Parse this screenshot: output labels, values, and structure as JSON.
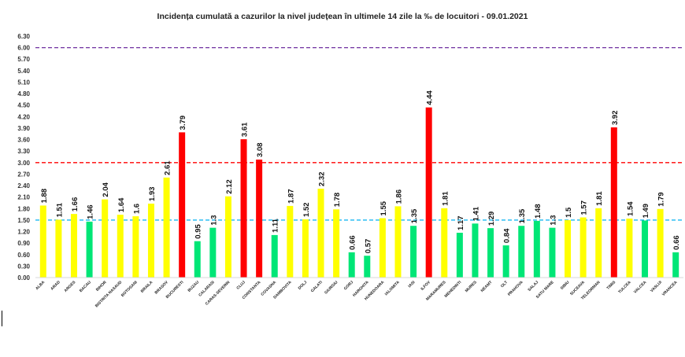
{
  "chart_data": {
    "type": "bar",
    "title": "Incidența cumulată a cazurilor la nivel județean în ultimele 14 zile la ‰ de locuitori - 09.01.2021",
    "xlabel": "",
    "ylabel": "",
    "ylim": [
      0,
      6.3
    ],
    "yticks": [
      "0.00",
      "0.30",
      "0.60",
      "0.90",
      "1.20",
      "1.50",
      "1.80",
      "2.10",
      "2.40",
      "2.70",
      "3.00",
      "3.30",
      "3.60",
      "3.90",
      "4.20",
      "4.50",
      "4.80",
      "5.10",
      "5.40",
      "5.70",
      "6.00",
      "6.30"
    ],
    "grid": false,
    "legend": "none",
    "categories": [
      "ALBA",
      "ARAD",
      "ARGES",
      "BACAU",
      "BIHOR",
      "BISTRITA NASAUD",
      "BOTOSANI",
      "BRAILA",
      "BRASOV",
      "BUCURESTI",
      "BUZAU",
      "CALARASI",
      "CARAS-SEVERIN",
      "CLUJ",
      "CONSTANTA",
      "COVASNA",
      "DAMBOVITA",
      "DOLJ",
      "GALATI",
      "GIURGIU",
      "GORJ",
      "HARGHITA",
      "HUNEDOARA",
      "IALOMITA",
      "IASI",
      "ILFOV",
      "MARAMURES",
      "MEHEDINTI",
      "MURES",
      "NEAMT",
      "OLT",
      "PRAHOVA",
      "SALAJ",
      "SATU MARE",
      "SIBIU",
      "SUCEAVA",
      "TELEORMAN",
      "TIMIS",
      "TULCEA",
      "VALCEA",
      "VASLUI",
      "VRANCEA"
    ],
    "values": [
      1.88,
      1.51,
      1.66,
      1.46,
      2.04,
      1.64,
      1.6,
      1.93,
      2.61,
      3.79,
      0.95,
      1.3,
      2.12,
      3.61,
      3.08,
      1.11,
      1.87,
      1.52,
      2.32,
      1.78,
      0.66,
      0.57,
      1.55,
      1.86,
      1.35,
      4.44,
      1.81,
      1.17,
      1.41,
      1.29,
      0.84,
      1.35,
      1.48,
      1.3,
      1.5,
      1.57,
      1.81,
      3.92,
      1.54,
      1.49,
      1.79,
      0.66
    ],
    "labels": [
      "1.88",
      "1.51",
      "1.66",
      "1.46",
      "2.04",
      "1.64",
      "1.6",
      "1.93",
      "2.61",
      "3.79",
      "0.95",
      "1.3",
      "2.12",
      "3.61",
      "3.08",
      "1.11",
      "1.87",
      "1.52",
      "2.32",
      "1.78",
      "0.66",
      "0.57",
      "1.55",
      "1.86",
      "1.35",
      "4.44",
      "1.81",
      "1.17",
      "1.41",
      "1.29",
      "0.84",
      "1.35",
      "1.48",
      "1.3",
      "1.5",
      "1.57",
      "1.81",
      "3.92",
      "1.54",
      "1.49",
      "1.79",
      "0.66"
    ],
    "bar_colors": [
      "#ffff00",
      "#ffff00",
      "#ffff00",
      "#00e676",
      "#ffff00",
      "#ffff00",
      "#ffff00",
      "#ffff00",
      "#ffff00",
      "#ff0000",
      "#00e676",
      "#00e676",
      "#ffff00",
      "#ff0000",
      "#ff0000",
      "#00e676",
      "#ffff00",
      "#ffff00",
      "#ffff00",
      "#ffff00",
      "#00e676",
      "#00e676",
      "#ffff00",
      "#ffff00",
      "#00e676",
      "#ff0000",
      "#ffff00",
      "#00e676",
      "#00e676",
      "#00e676",
      "#00e676",
      "#00e676",
      "#00e676",
      "#00e676",
      "#ffff00",
      "#ffff00",
      "#ffff00",
      "#ff0000",
      "#ffff00",
      "#00e676",
      "#ffff00",
      "#00e676"
    ],
    "threshold_lines": [
      {
        "value": 6.0,
        "color": "#7030a0"
      },
      {
        "value": 3.0,
        "color": "#ff0000"
      },
      {
        "value": 1.5,
        "color": "#00b0f0"
      }
    ]
  }
}
